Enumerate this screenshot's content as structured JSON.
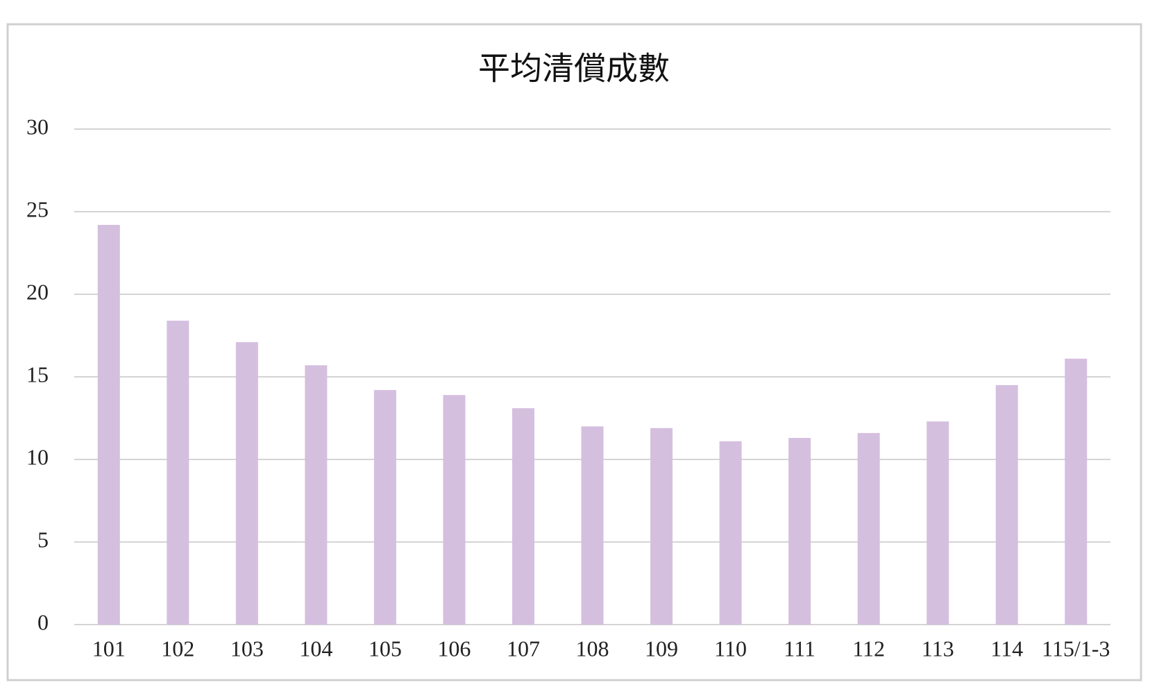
{
  "chart_data": {
    "type": "bar",
    "title": "平均清償成數",
    "categories": [
      "101",
      "102",
      "103",
      "104",
      "105",
      "106",
      "107",
      "108",
      "109",
      "110",
      "111",
      "112",
      "113",
      "114",
      "115/1-3"
    ],
    "values": [
      24.2,
      18.4,
      17.1,
      15.7,
      14.2,
      13.9,
      13.1,
      12.0,
      11.9,
      11.1,
      11.3,
      11.6,
      12.3,
      14.5,
      16.1
    ],
    "color": "#d5bfdf",
    "ylim": [
      0,
      30
    ],
    "yticks": [
      0,
      5,
      10,
      15,
      20,
      25,
      30
    ],
    "grid": true
  }
}
